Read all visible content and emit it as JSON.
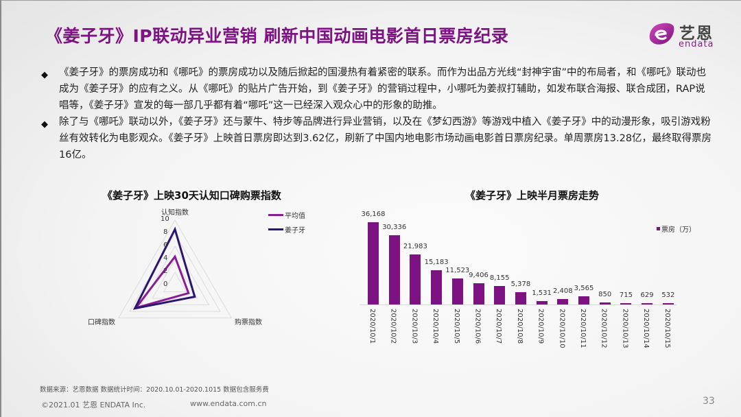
{
  "slide": {
    "title": "《姜子牙》IP联动异业营销 刷新中国动画电影首日票房纪录",
    "logo": {
      "cn": "艺恩",
      "en": "endata",
      "accent": "#a2238f"
    },
    "bullets": [
      {
        "icon": "◆",
        "text": "《姜子牙》的票房成功和《哪吒》的票房成功以及随后掀起的国漫热有着紧密的联系。而作为出品方光线“封神宇宙”中的布局者，和《哪吒》联动也成为《姜子牙》的应有之义。从《哪吒》的贴片广告开始，到《姜子牙》的营销过程中，小哪吒为姜叔打辅助，如发布联合海报、联合成团，RAP说唱等，《姜子牙》宣发的每一部几乎都有着“哪吒”这一已经深入观众心中的形象的助推。"
      },
      {
        "icon": "◆",
        "text": "除了与《哪吒》联动以外，《姜子牙》还与蒙牛、特步等品牌进行异业营销，以及在《梦幻西游》等游戏中植入《姜子牙》中的动漫形象，吸引游戏粉丝有效转化为电影观众。《姜子牙》上映首日票房即达到3.62亿，刷新了中国内地电影市场动画电影首日票房纪录。单周票房13.28亿，最终取得票房16亿。"
      }
    ],
    "footer": {
      "source": "数据来源：艺恩数据   数据统计时间：2020.10.01-2020.1015 数据包含服务费",
      "copyright": "©2021.01 艺恩 ENDATA Inc.",
      "url": "www.endata.com.cn",
      "page": "33"
    },
    "colors": {
      "title": "#7d1283",
      "bar": "#7d1283",
      "average_line": "#8b1a94",
      "jiangziya_line": "#2a1670"
    }
  },
  "chart_data": [
    {
      "type": "radar",
      "title": "《姜子牙》上映30天认知口碑购票指数",
      "axes": [
        "认知指数",
        "购票指数",
        "口碑指数"
      ],
      "ticks": [
        "0",
        "2",
        "4",
        "6",
        "8",
        "10"
      ],
      "range": [
        0,
        10
      ],
      "series": [
        {
          "name": "平均值",
          "color": "#8b1a94",
          "values": [
            4.4,
            2.4,
            6.9
          ]
        },
        {
          "name": "姜子牙",
          "color": "#2a1670",
          "values": [
            8.6,
            3.5,
            7.1
          ]
        }
      ],
      "legend_position": "right"
    },
    {
      "type": "bar",
      "title": "《姜子牙》上映半月票房走势",
      "categories": [
        "2020/10/1",
        "2020/10/2",
        "2020/10/3",
        "2020/10/4",
        "2020/10/5",
        "2020/10/6",
        "2020/10/7",
        "2020/10/8",
        "2020/10/9",
        "2020/10/10",
        "2020/10/11",
        "2020/10/12",
        "2020/10/13",
        "2020/10/14",
        "2020/10/15"
      ],
      "series": [
        {
          "name": "票房（万）",
          "values": [
            36168,
            30336,
            21983,
            15183,
            11523,
            9406,
            8155,
            5378,
            1531,
            2408,
            3565,
            850,
            715,
            629,
            532
          ]
        }
      ],
      "value_labels": [
        "36,168",
        "30,336",
        "21,983",
        "15,183",
        "11,523",
        "9,406",
        "8,155",
        "5,378",
        "1,531",
        "2,408",
        "3,565",
        "850",
        "715",
        "629",
        "532"
      ],
      "xlabel": "",
      "ylabel": "",
      "ylim": [
        0,
        40000
      ],
      "grid": false,
      "legend_position": "top-right"
    }
  ]
}
